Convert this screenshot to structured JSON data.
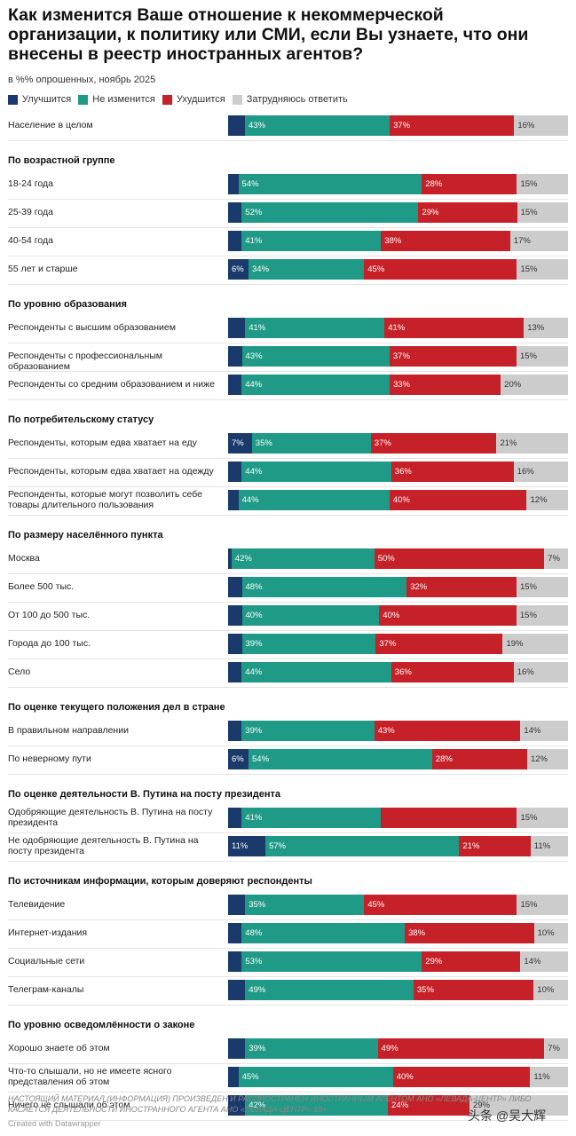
{
  "title": "Как изменится Ваше отношение к некоммерческой организации, к политику или СМИ, если Вы узнаете, что они внесены в реестр иностранных агентов?",
  "subtitle": "в %% опрошенных, ноябрь 2025",
  "legend": [
    {
      "label": "Улучшится",
      "color": "#1a3a6b"
    },
    {
      "label": "Не изменится",
      "color": "#1f9a86"
    },
    {
      "label": "Ухудшится",
      "color": "#c62128"
    },
    {
      "label": "Затрудняюсь ответить",
      "color": "#cccccc"
    }
  ],
  "chart_data": {
    "type": "bar",
    "stacked": true,
    "orientation": "horizontal",
    "series_names": [
      "Улучшится",
      "Не изменится",
      "Ухудшится",
      "Затрудняюсь ответить"
    ],
    "groups": [
      {
        "title": "",
        "rows": [
          {
            "label": "Население в целом",
            "values": [
              5,
              43,
              37,
              16
            ],
            "labels": [
              "",
              "43%",
              "37%",
              "16%"
            ]
          }
        ]
      },
      {
        "title": "По возрастной группе",
        "rows": [
          {
            "label": "18-24 года",
            "values": [
              3,
              54,
              28,
              15
            ],
            "labels": [
              "",
              "54%",
              "28%",
              "15%"
            ]
          },
          {
            "label": "25-39 года",
            "values": [
              4,
              52,
              29,
              15
            ],
            "labels": [
              "",
              "52%",
              "29%",
              "15%"
            ]
          },
          {
            "label": "40-54 года",
            "values": [
              4,
              41,
              38,
              17
            ],
            "labels": [
              "",
              "41%",
              "38%",
              "17%"
            ]
          },
          {
            "label": "55 лет и старше",
            "values": [
              6,
              34,
              45,
              15
            ],
            "labels": [
              "6%",
              "34%",
              "45%",
              "15%"
            ]
          }
        ]
      },
      {
        "title": "По уровню образования",
        "rows": [
          {
            "label": "Респонденты с высшим образованием",
            "values": [
              5,
              41,
              41,
              13
            ],
            "labels": [
              "",
              "41%",
              "41%",
              "13%"
            ]
          },
          {
            "label": "Респонденты с профессиональным образованием",
            "values": [
              4,
              43,
              37,
              15
            ],
            "labels": [
              "",
              "43%",
              "37%",
              "15%"
            ]
          },
          {
            "label": "Респонденты со средним образованием и ниже",
            "values": [
              4,
              44,
              33,
              20
            ],
            "labels": [
              "",
              "44%",
              "33%",
              "20%"
            ]
          }
        ]
      },
      {
        "title": "По потребительскому статусу",
        "rows": [
          {
            "label": "Респонденты, которым едва хватает на еду",
            "values": [
              7,
              35,
              37,
              21
            ],
            "labels": [
              "7%",
              "35%",
              "37%",
              "21%"
            ]
          },
          {
            "label": "Респонденты, которым едва хватает на одежду",
            "values": [
              4,
              44,
              36,
              16
            ],
            "labels": [
              "",
              "44%",
              "36%",
              "16%"
            ]
          },
          {
            "label": "Респонденты, которые могут позволить себе товары длительного пользования",
            "values": [
              3,
              44,
              40,
              12
            ],
            "labels": [
              "",
              "44%",
              "40%",
              "12%"
            ]
          }
        ]
      },
      {
        "title": "По размеру населённого пункта",
        "rows": [
          {
            "label": "Москва",
            "values": [
              1,
              42,
              50,
              7
            ],
            "labels": [
              "",
              "42%",
              "50%",
              "7%"
            ]
          },
          {
            "label": "Более 500 тыс.",
            "values": [
              4,
              48,
              32,
              15
            ],
            "labels": [
              "",
              "48%",
              "32%",
              "15%"
            ]
          },
          {
            "label": "От 100 до 500 тыс.",
            "values": [
              4,
              40,
              40,
              15
            ],
            "labels": [
              "",
              "40%",
              "40%",
              "15%"
            ]
          },
          {
            "label": "Города до 100 тыс.",
            "values": [
              4,
              39,
              37,
              19
            ],
            "labels": [
              "",
              "39%",
              "37%",
              "19%"
            ]
          },
          {
            "label": "Село",
            "values": [
              4,
              44,
              36,
              16
            ],
            "labels": [
              "",
              "44%",
              "36%",
              "16%"
            ]
          }
        ]
      },
      {
        "title": "По оценке текущего положения дел в стране",
        "rows": [
          {
            "label": "В правильном направлении",
            "values": [
              4,
              39,
              43,
              14
            ],
            "labels": [
              "",
              "39%",
              "43%",
              "14%"
            ]
          },
          {
            "label": "По неверному пути",
            "values": [
              6,
              54,
              28,
              12
            ],
            "labels": [
              "6%",
              "54%",
              "28%",
              "12%"
            ]
          }
        ]
      },
      {
        "title": "По оценке деятельности В. Путина на посту президента",
        "rows": [
          {
            "label": "Одобряющие деятельность В. Путина на посту президента",
            "values": [
              4,
              41,
              40,
              15
            ],
            "labels": [
              "",
              "41%",
              "",
              "15%"
            ]
          },
          {
            "label": "Не одобряющие деятельность В. Путина на посту президента",
            "values": [
              11,
              57,
              21,
              11
            ],
            "labels": [
              "11%",
              "57%",
              "21%",
              "11%"
            ]
          }
        ]
      },
      {
        "title": "По источникам информации, которым доверяют респонденты",
        "rows": [
          {
            "label": "Телевидение",
            "values": [
              5,
              35,
              45,
              15
            ],
            "labels": [
              "",
              "35%",
              "45%",
              "15%"
            ]
          },
          {
            "label": "Интернет-издания",
            "values": [
              4,
              48,
              38,
              10
            ],
            "labels": [
              "",
              "48%",
              "38%",
              "10%"
            ]
          },
          {
            "label": "Социальные сети",
            "values": [
              4,
              53,
              29,
              14
            ],
            "labels": [
              "",
              "53%",
              "29%",
              "14%"
            ]
          },
          {
            "label": "Телеграм-каналы",
            "values": [
              5,
              49,
              35,
              10
            ],
            "labels": [
              "",
              "49%",
              "35%",
              "10%"
            ]
          }
        ]
      },
      {
        "title": "По уровню осведомлённости о законе",
        "rows": [
          {
            "label": "Хорошо знаете об этом",
            "values": [
              5,
              39,
              49,
              7
            ],
            "labels": [
              "",
              "39%",
              "49%",
              "7%"
            ]
          },
          {
            "label": "Что-то слышали, но не имеете ясного представления об этом",
            "values": [
              3,
              45,
              40,
              11
            ],
            "labels": [
              "",
              "45%",
              "40%",
              "11%"
            ]
          },
          {
            "label": "Ничего не слышали об этом",
            "values": [
              5,
              42,
              24,
              29
            ],
            "labels": [
              "",
              "42%",
              "24%",
              "29%"
            ]
          }
        ]
      }
    ]
  },
  "footer": "НАСТОЯЩИЙ МАТЕРИАЛ (ИНФОРМАЦИЯ) ПРОИЗВЕДЕН И РАСПРОСТРАНЕН ИНОСТРАННЫМ АГЕНТОМ АНО «ЛЕВАДА-ЦЕНТР» ЛИБО КАСАЕТСЯ ДЕЯТЕЛЬНОСТИ ИНОСТРАННОГО АГЕНТА АНО «ЛЕВАДА-ЦЕНТР».18+",
  "credit": "Created with Datawrapper",
  "watermark": "头条 @吴大辉"
}
